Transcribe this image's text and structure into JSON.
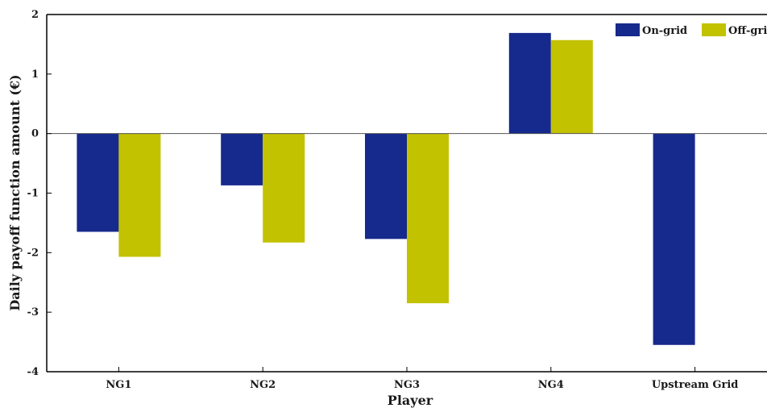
{
  "chart_data": {
    "type": "bar",
    "title": "",
    "xlabel": "Player",
    "ylabel": "Daily payoff function amount (€)",
    "categories": [
      "NG1",
      "NG2",
      "NG3",
      "NG4",
      "Upstream Grid"
    ],
    "series": [
      {
        "name": "On-grid",
        "color": "#16298c",
        "values": [
          -1.65,
          -0.87,
          -1.77,
          1.69,
          -3.55
        ]
      },
      {
        "name": "Off-grid",
        "color": "#c2c200",
        "values": [
          -2.07,
          -1.83,
          -2.85,
          1.57,
          0.0
        ]
      }
    ],
    "ylim": [
      -4,
      2
    ],
    "yticks": [
      "2",
      "1",
      "0",
      "-1",
      "-2",
      "-3",
      "-4"
    ],
    "ytick_values": [
      2,
      1,
      0,
      -1,
      -2,
      -3,
      -4
    ],
    "grid": false,
    "legend_position": "top-right",
    "zero_line": true
  }
}
